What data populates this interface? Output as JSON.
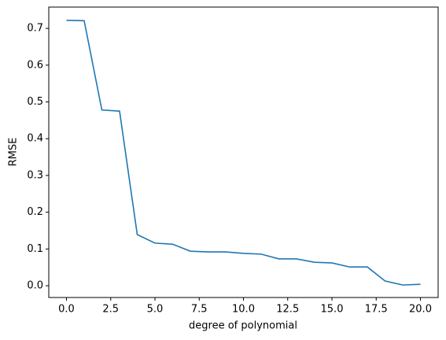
{
  "chart_data": {
    "type": "line",
    "xlabel": "degree of polynomial",
    "ylabel": "RMSE",
    "x": [
      0,
      1,
      2,
      3,
      4,
      5,
      6,
      7,
      8,
      9,
      10,
      11,
      12,
      13,
      14,
      15,
      16,
      17,
      18,
      19,
      20
    ],
    "values": [
      0.722,
      0.721,
      0.478,
      0.475,
      0.139,
      0.116,
      0.113,
      0.094,
      0.092,
      0.092,
      0.088,
      0.086,
      0.073,
      0.073,
      0.064,
      0.062,
      0.051,
      0.051,
      0.013,
      0.002,
      0.004
    ],
    "color": "#1f77b4",
    "xlim": [
      -1,
      21
    ],
    "xticks": [
      {
        "value": 0,
        "label": "0.0"
      },
      {
        "value": 2.5,
        "label": "2.5"
      },
      {
        "value": 5,
        "label": "5.0"
      },
      {
        "value": 7.5,
        "label": "7.5"
      },
      {
        "value": 10,
        "label": "10.0"
      },
      {
        "value": 12.5,
        "label": "12.5"
      },
      {
        "value": 15,
        "label": "15.0"
      },
      {
        "value": 17.5,
        "label": "17.5"
      },
      {
        "value": 20,
        "label": "20.0"
      }
    ],
    "ylim": [
      -0.032,
      0.758
    ],
    "yticks": [
      {
        "value": 0,
        "label": "0.0"
      },
      {
        "value": 0.1,
        "label": "0.1"
      },
      {
        "value": 0.2,
        "label": "0.2"
      },
      {
        "value": 0.3,
        "label": "0.3"
      },
      {
        "value": 0.4,
        "label": "0.4"
      },
      {
        "value": 0.5,
        "label": "0.5"
      },
      {
        "value": 0.6,
        "label": "0.6"
      },
      {
        "value": 0.7,
        "label": "0.7"
      }
    ]
  }
}
